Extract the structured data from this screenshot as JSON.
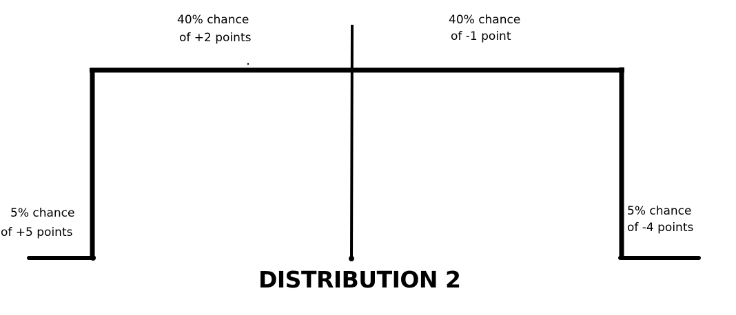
{
  "labels": {
    "upper_left": {
      "line1": "40% chance",
      "line2": "of +2 points"
    },
    "upper_right": {
      "line1": "40% chance",
      "line2": "of -1 point"
    },
    "lower_left": {
      "line1": "5% chance",
      "line2": "of +5 points"
    },
    "lower_right": {
      "line1": "5% chance",
      "line2": "of -4 points"
    }
  },
  "title": "DISTRIBUTION 2",
  "colors": {
    "line": "#000000",
    "background": "#ffffff"
  }
}
